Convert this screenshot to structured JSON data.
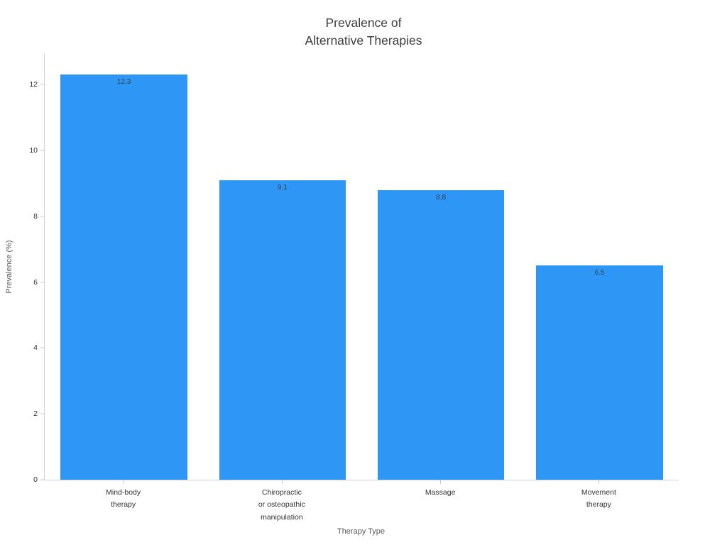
{
  "chart_data": {
    "type": "bar",
    "title": "Prevalence of\nAlternative Therapies",
    "categories": [
      "Mind-body\ntherapy",
      "Chiropractic\nor osteopathic\nmanipulation",
      "Massage",
      "Movement\ntherapy"
    ],
    "values": [
      12.3,
      9.1,
      8.8,
      6.5
    ],
    "value_labels": [
      "12.3",
      "9.1",
      "8.8",
      "6.5"
    ],
    "xlabel": "Therapy Type",
    "ylabel": "Prevalence (%)",
    "yticks": [
      0,
      2,
      4,
      6,
      8,
      10,
      12
    ],
    "ylim": [
      0,
      12.95
    ],
    "bar_color": "#2E96F5",
    "grid": false,
    "legend": "none",
    "background": "#ffffff"
  }
}
